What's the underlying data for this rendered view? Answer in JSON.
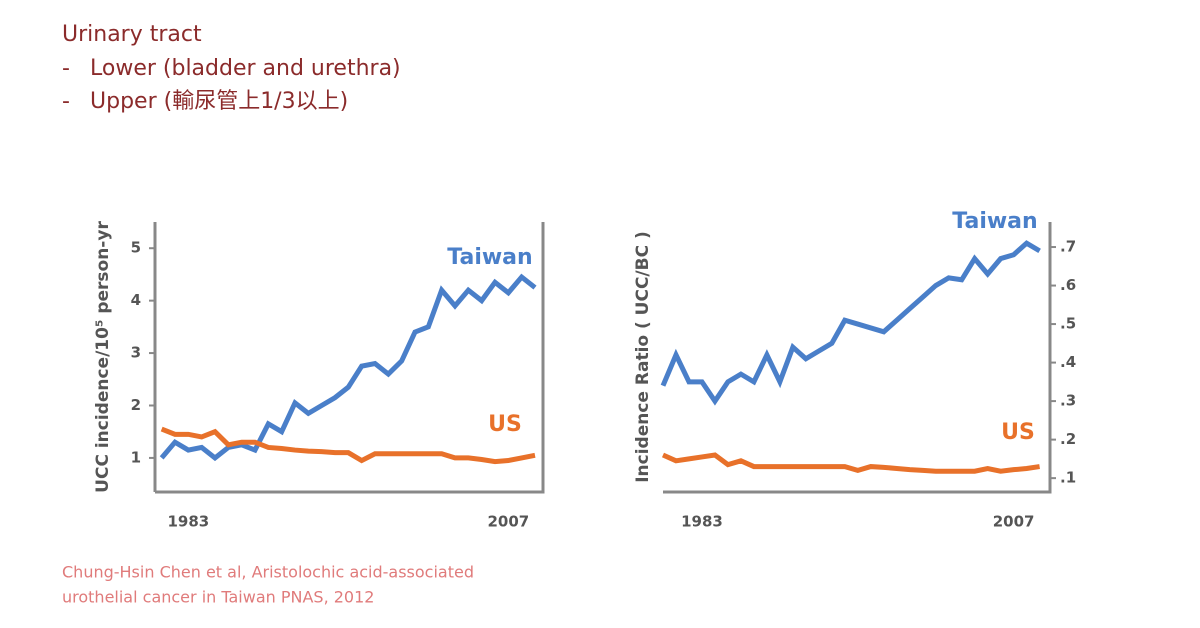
{
  "header": {
    "title": "Urinary tract",
    "items": [
      "Lower (bladder and urethra)",
      "Upper (輸尿管上1/3以上)"
    ],
    "bullet": "-"
  },
  "citation": [
    "Chung-Hsin Chen et al, Aristolochic acid-associated",
    "urothelial cancer in Taiwan PNAS, 2012"
  ],
  "chart_data": [
    {
      "type": "line",
      "y_label": "UCC incidence/10⁵ person-yr",
      "y_axis_side": "left",
      "x": [
        1981,
        1982,
        1983,
        1984,
        1985,
        1986,
        1987,
        1988,
        1989,
        1990,
        1991,
        1992,
        1993,
        1994,
        1995,
        1996,
        1997,
        1998,
        1999,
        2000,
        2001,
        2002,
        2003,
        2004,
        2005,
        2006,
        2007,
        2008,
        2009
      ],
      "xlim": [
        1980.5,
        2009.6
      ],
      "xticks": [
        1983,
        2007
      ],
      "ylim": [
        0.35,
        5.5
      ],
      "yticks": [
        1,
        2,
        3,
        4,
        5
      ],
      "series": [
        {
          "name": "Taiwan",
          "color": "#4a7fc9",
          "values": [
            1.0,
            1.3,
            1.15,
            1.2,
            1.0,
            1.2,
            1.25,
            1.15,
            1.65,
            1.5,
            2.05,
            1.85,
            2.0,
            2.15,
            2.35,
            2.75,
            2.8,
            2.6,
            2.85,
            3.4,
            3.5,
            4.2,
            3.9,
            4.2,
            4.0,
            4.35,
            4.15,
            4.45,
            4.25
          ]
        },
        {
          "name": "US",
          "color": "#e8712a",
          "values": [
            1.55,
            1.45,
            1.45,
            1.4,
            1.5,
            1.25,
            1.3,
            1.3,
            1.2,
            1.18,
            1.15,
            1.13,
            1.12,
            1.1,
            1.1,
            0.95,
            1.08,
            1.08,
            1.08,
            1.08,
            1.08,
            1.08,
            1.0,
            1.0,
            0.97,
            0.93,
            0.95,
            1.0,
            1.05
          ]
        }
      ]
    },
    {
      "type": "line",
      "y_label": "Incidence Ratio ( UCC/BC )",
      "y_axis_side": "right",
      "x": [
        1980,
        1981,
        1982,
        1983,
        1984,
        1985,
        1986,
        1987,
        1988,
        1989,
        1990,
        1991,
        1992,
        1993,
        1994,
        1995,
        1996,
        1997,
        1998,
        1999,
        2000,
        2001,
        2002,
        2003,
        2004,
        2005,
        2006,
        2007,
        2008,
        2009
      ],
      "xlim": [
        1980,
        2009.8
      ],
      "xticks": [
        1983,
        2007
      ],
      "ylim": [
        0.064,
        0.765
      ],
      "yticks": [
        {
          "value": 0.1,
          "label": ".1"
        },
        {
          "value": 0.2,
          "label": ".2"
        },
        {
          "value": 0.3,
          "label": ".3"
        },
        {
          "value": 0.4,
          "label": ".4"
        },
        {
          "value": 0.5,
          "label": ".5"
        },
        {
          "value": 0.6,
          "label": ".6"
        },
        {
          "value": 0.7,
          "label": ".7"
        }
      ],
      "series": [
        {
          "name": "Taiwan",
          "color": "#4a7fc9",
          "values": [
            0.34,
            0.42,
            0.35,
            0.35,
            0.3,
            0.35,
            0.37,
            0.35,
            0.42,
            0.35,
            0.44,
            0.41,
            0.43,
            0.45,
            0.51,
            0.5,
            0.49,
            0.48,
            0.51,
            0.54,
            0.57,
            0.6,
            0.62,
            0.615,
            0.67,
            0.63,
            0.67,
            0.68,
            0.71,
            0.69
          ]
        },
        {
          "name": "US",
          "color": "#e8712a",
          "values": [
            0.16,
            0.145,
            0.15,
            0.155,
            0.16,
            0.135,
            0.145,
            0.13,
            0.13,
            0.13,
            0.13,
            0.13,
            0.13,
            0.13,
            0.13,
            0.12,
            0.13,
            0.128,
            0.125,
            0.122,
            0.12,
            0.118,
            0.118,
            0.118,
            0.118,
            0.125,
            0.118,
            0.122,
            0.125,
            0.13
          ]
        }
      ]
    }
  ]
}
